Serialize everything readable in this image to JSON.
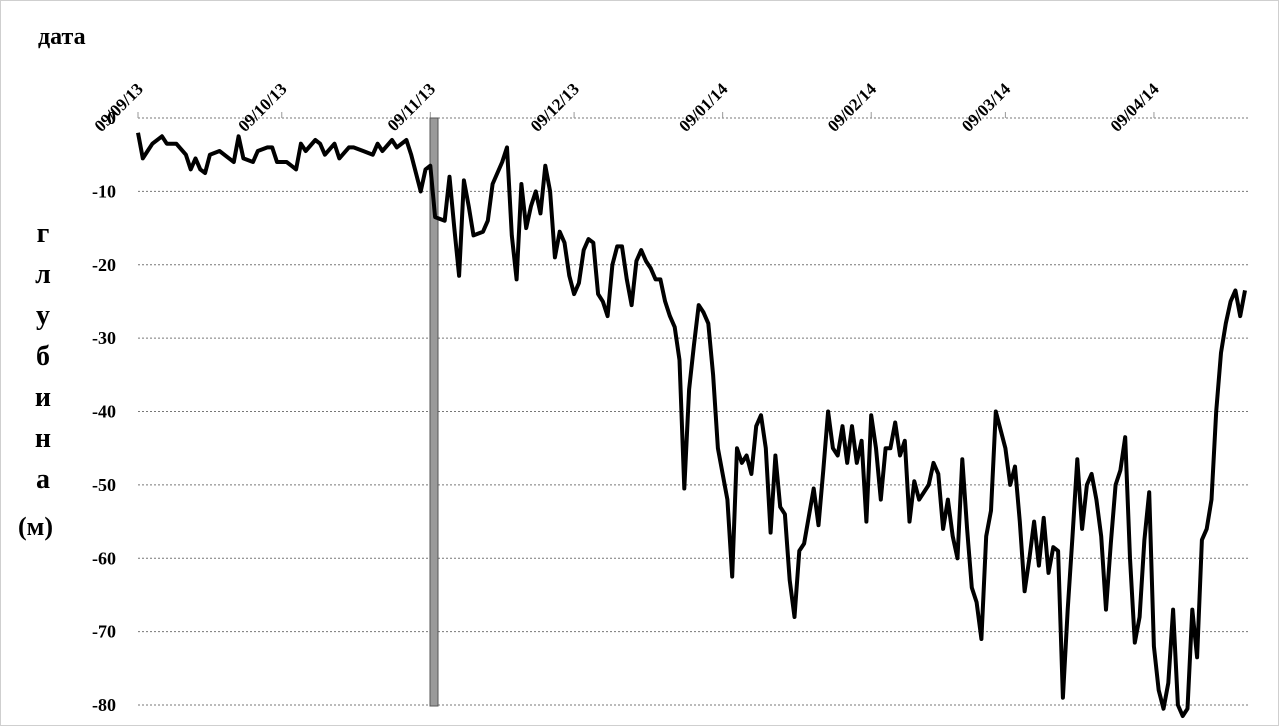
{
  "chart_data": {
    "type": "line",
    "x_label": "дата",
    "y_label": "глубина",
    "y_unit": "(м)",
    "x": [
      "09/09/13",
      "10/09/13",
      "11/09/13",
      "12/09/13",
      "14/09/13",
      "15/09/13",
      "17/09/13",
      "19/09/13",
      "20/09/13",
      "21/09/13",
      "22/09/13",
      "23/09/13",
      "24/09/13",
      "26/09/13",
      "28/09/13",
      "29/09/13",
      "30/09/13",
      "01/10/13",
      "03/10/13",
      "04/10/13",
      "06/10/13",
      "07/10/13",
      "08/10/13",
      "10/10/13",
      "11/10/13",
      "12/10/13",
      "13/10/13",
      "14/10/13",
      "16/10/13",
      "17/10/13",
      "18/10/13",
      "20/10/13",
      "21/10/13",
      "23/10/13",
      "24/10/13",
      "26/10/13",
      "28/10/13",
      "29/10/13",
      "30/10/13",
      "01/11/13",
      "02/11/13",
      "04/11/13",
      "05/11/13",
      "07/11/13",
      "08/11/13",
      "09/11/13",
      "10/11/13",
      "12/11/13",
      "13/11/13",
      "14/11/13",
      "15/11/13",
      "16/11/13",
      "17/11/13",
      "18/11/13",
      "20/11/13",
      "21/11/13",
      "22/11/13",
      "24/11/13",
      "25/11/13",
      "26/11/13",
      "27/11/13",
      "28/11/13",
      "29/11/13",
      "30/11/13",
      "01/12/13",
      "02/12/13",
      "03/12/13",
      "04/12/13",
      "05/12/13",
      "06/12/13",
      "07/12/13",
      "08/12/13",
      "09/12/13",
      "10/12/13",
      "11/12/13",
      "12/12/13",
      "13/12/13",
      "14/12/13",
      "15/12/13",
      "16/12/13",
      "17/12/13",
      "18/12/13",
      "19/12/13",
      "20/12/13",
      "21/12/13",
      "22/12/13",
      "23/12/13",
      "24/12/13",
      "25/12/13",
      "26/12/13",
      "27/12/13",
      "28/12/13",
      "29/12/13",
      "30/12/13",
      "31/12/13",
      "01/01/14",
      "02/01/14",
      "03/01/14",
      "04/01/14",
      "05/01/14",
      "06/01/14",
      "07/01/14",
      "08/01/14",
      "10/01/14",
      "11/01/14",
      "12/01/14",
      "13/01/14",
      "14/01/14",
      "15/01/14",
      "16/01/14",
      "17/01/14",
      "18/01/14",
      "19/01/14",
      "20/01/14",
      "21/01/14",
      "22/01/14",
      "23/01/14",
      "24/01/14",
      "25/01/14",
      "26/01/14",
      "28/01/14",
      "29/01/14",
      "30/01/14",
      "31/01/14",
      "01/02/14",
      "02/02/14",
      "03/02/14",
      "04/02/14",
      "05/02/14",
      "06/02/14",
      "07/02/14",
      "08/02/14",
      "09/02/14",
      "10/02/14",
      "11/02/14",
      "12/02/14",
      "13/02/14",
      "14/02/14",
      "15/02/14",
      "16/02/14",
      "17/02/14",
      "18/02/14",
      "19/02/14",
      "21/02/14",
      "22/02/14",
      "23/02/14",
      "24/02/14",
      "25/02/14",
      "26/02/14",
      "27/02/14",
      "28/02/14",
      "01/03/14",
      "02/03/14",
      "03/03/14",
      "04/03/14",
      "05/03/14",
      "06/03/14",
      "07/03/14",
      "09/03/14",
      "10/03/14",
      "11/03/14",
      "12/03/14",
      "13/03/14",
      "14/03/14",
      "15/03/14",
      "16/03/14",
      "17/03/14",
      "18/03/14",
      "19/03/14",
      "20/03/14",
      "21/03/14",
      "22/03/14",
      "23/03/14",
      "24/03/14",
      "25/03/14",
      "26/03/14",
      "27/03/14",
      "28/03/14",
      "29/03/14",
      "30/03/14",
      "31/03/14",
      "01/04/14",
      "02/04/14",
      "03/04/14",
      "04/04/14",
      "05/04/14",
      "06/04/14",
      "07/04/14",
      "08/04/14",
      "09/04/14",
      "10/04/14",
      "11/04/14",
      "12/04/14",
      "13/04/14",
      "14/04/14",
      "15/04/14",
      "16/04/14",
      "17/04/14",
      "18/04/14",
      "19/04/14",
      "20/04/14",
      "21/04/14",
      "22/04/14",
      "23/04/14",
      "24/04/14",
      "25/04/14",
      "26/04/14",
      "27/04/14",
      "28/04/14"
    ],
    "values": [
      -2,
      -5.5,
      -4.5,
      -3.5,
      -2.5,
      -3.5,
      -3.5,
      -5,
      -7,
      -5.5,
      -7,
      -7.5,
      -5,
      -4.5,
      -5.5,
      -6,
      -2.5,
      -5.5,
      -6,
      -4.5,
      -4,
      -4,
      -6,
      -6,
      -6.5,
      -7,
      -3.5,
      -4.5,
      -3,
      -3.5,
      -5,
      -3.5,
      -5.5,
      -4,
      -4,
      -4.5,
      -5,
      -3.5,
      -4.5,
      -3,
      -4,
      -3,
      -5,
      -10,
      -7,
      -6.5,
      -13.5,
      -14,
      -8,
      -15,
      -21.5,
      -8.5,
      -12,
      -16,
      -15.5,
      -14,
      -9,
      -6,
      -4,
      -16,
      -22,
      -9,
      -15,
      -12,
      -10,
      -13,
      -6.5,
      -10,
      -19,
      -15.5,
      -17,
      -21.5,
      -24,
      -22.5,
      -18,
      -16.5,
      -17,
      -24,
      -25,
      -27,
      -20,
      -17.5,
      -17.5,
      -22,
      -25.5,
      -19.5,
      -18,
      -19.5,
      -20.5,
      -22,
      -22,
      -25,
      -27,
      -28.5,
      -33,
      -50.5,
      -37,
      -31,
      -25.5,
      -26.5,
      -28,
      -35,
      -45,
      -52,
      -62.5,
      -45,
      -47,
      -46,
      -48.5,
      -42,
      -40.5,
      -45,
      -56.5,
      -46,
      -53,
      -54,
      -63,
      -68,
      -59,
      -58,
      -50.5,
      -55.5,
      -48,
      -40,
      -45,
      -46,
      -42,
      -47,
      -42,
      -47,
      -44,
      -55,
      -40.5,
      -45,
      -52,
      -45,
      -45,
      -41.5,
      -46,
      -44,
      -55,
      -49.5,
      -52,
      -50,
      -47,
      -48.5,
      -56,
      -52,
      -57,
      -60,
      -46.5,
      -56,
      -64,
      -66,
      -71,
      -57,
      -53.5,
      -40,
      -45,
      -50,
      -47.5,
      -55,
      -64.5,
      -60,
      -55,
      -61,
      -54.5,
      -62,
      -58.5,
      -59,
      -79,
      -67,
      -57,
      -46.5,
      -56,
      -50,
      -48.5,
      -52,
      -57,
      -67,
      -58,
      -50,
      -48,
      -43.5,
      -60,
      -71.5,
      -68,
      -57.5,
      -51,
      -72,
      -78,
      -80.5,
      -77,
      -67,
      -80,
      -81.5,
      -80.5,
      -67,
      -73.5,
      -57.5,
      -56,
      -52,
      -40,
      -32,
      -28,
      -25,
      -23.5,
      -27,
      -23.5
    ],
    "color": "#000000",
    "xlim": [
      "09/09/13",
      "28/04/14"
    ],
    "xticks": [
      "09/09/13",
      "09/10/13",
      "09/11/13",
      "09/12/13",
      "09/01/14",
      "09/02/14",
      "09/03/14",
      "09/04/14"
    ],
    "ylim": [
      -80,
      0
    ],
    "yticks": [
      0,
      -10,
      -20,
      -30,
      -40,
      -50,
      -60,
      -70,
      -80
    ],
    "grid": true
  }
}
